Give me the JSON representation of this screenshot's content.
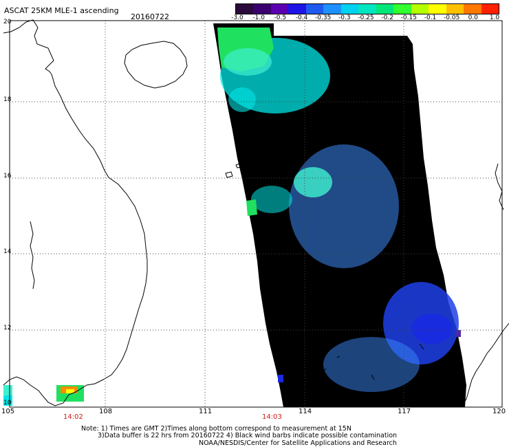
{
  "header": {
    "title": "ASCAT 25KM MLE-1 ascending",
    "date": "20160722"
  },
  "colorbar": {
    "colors": [
      "#2a0a3a",
      "#3b0070",
      "#5a00b0",
      "#1e14e6",
      "#1e5af0",
      "#1e90ff",
      "#00d2f0",
      "#00e6c0",
      "#00e678",
      "#30ff30",
      "#b4ff00",
      "#ffff00",
      "#ffc000",
      "#ff7800",
      "#ff2000"
    ],
    "labels": [
      "-3.0",
      "-1.0",
      "-0.5",
      "-0.4",
      "-0.35",
      "-0.3",
      "-0.25",
      "-0.2",
      "-0.15",
      "-0.1",
      "-0.05",
      "0.0",
      "1.0"
    ]
  },
  "axes": {
    "lon_labels": [
      "105",
      "108",
      "111",
      "114",
      "117",
      "120"
    ],
    "lat_labels": [
      "20",
      "18",
      "16",
      "14",
      "12",
      "10"
    ],
    "time_labels": [
      "14:02",
      "14:03"
    ]
  },
  "swath_colors": {
    "base": "#2e6cf0",
    "light": "#3a88f5",
    "cyan": "#00e6e6",
    "aqua": "#40f0d0",
    "green": "#20e060",
    "dark": "#1e40e8",
    "darker": "#1a2ae0",
    "purple": "#4a2aa8"
  },
  "notes": {
    "line1": "Note: 1) Times are GMT 2)Times along bottom correspond to measurement at 15N",
    "line2": "3)Data buffer is 22 hrs from 20160722 4) Black wind barbs indicate possible contamination",
    "line3": "NOAA/NESDIS/Center for Satellite Applications and Research"
  }
}
